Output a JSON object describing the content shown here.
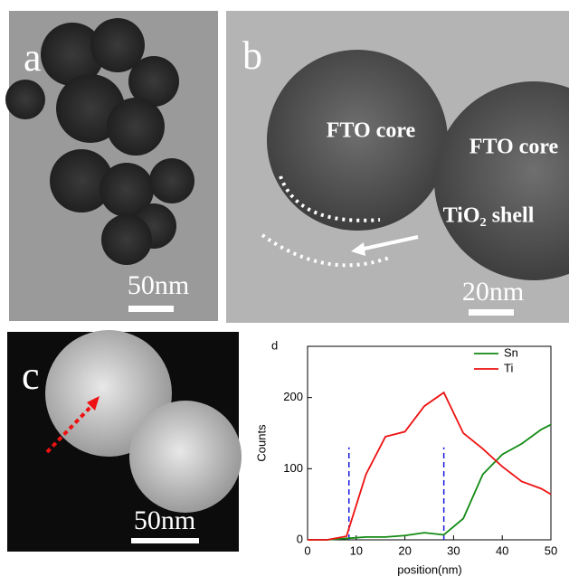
{
  "panels": {
    "a": {
      "label": "a",
      "scale": "50nm"
    },
    "b": {
      "label": "b",
      "core1": "FTO core",
      "core2": "FTO core",
      "shell": "TiO₂ shell",
      "scale": "20nm"
    },
    "c": {
      "label": "c",
      "scale": "50nm"
    }
  },
  "chart_data": {
    "type": "line",
    "panel_label": "d",
    "x_label": "position(nm)",
    "y_label": "Counts",
    "x": [
      0,
      4,
      8,
      12,
      16,
      20,
      24,
      28,
      32,
      36,
      40,
      44,
      48,
      50
    ],
    "series": [
      {
        "name": "Sn",
        "color": "#138a13",
        "values": [
          0,
          0,
          2,
          4,
          4,
          6,
          10,
          7,
          30,
          92,
          120,
          135,
          155,
          162
        ]
      },
      {
        "name": "Ti",
        "color": "#ee1111",
        "values": [
          0,
          0,
          5,
          92,
          145,
          152,
          188,
          207,
          150,
          128,
          103,
          82,
          72,
          64
        ]
      }
    ],
    "vlines": {
      "x": [
        8.5,
        28
      ],
      "ymax": 130,
      "color": "#1a1add"
    },
    "xlim": [
      0,
      50
    ],
    "xticks": [
      0,
      10,
      20,
      30,
      40,
      50
    ],
    "ylim": [
      0,
      272
    ],
    "yticks": [
      0,
      100,
      200
    ],
    "legend": "upper-right"
  }
}
